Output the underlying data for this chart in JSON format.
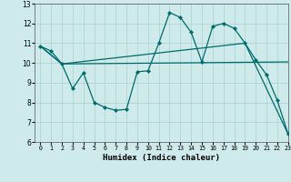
{
  "background_color": "#ceeaea",
  "grid_color": "#aacfcf",
  "line_color": "#006b6b",
  "xlabel": "Humidex (Indice chaleur)",
  "xlim": [
    -0.5,
    23
  ],
  "ylim": [
    6,
    13
  ],
  "xticks": [
    0,
    1,
    2,
    3,
    4,
    5,
    6,
    7,
    8,
    9,
    10,
    11,
    12,
    13,
    14,
    15,
    16,
    17,
    18,
    19,
    20,
    21,
    22,
    23
  ],
  "yticks": [
    6,
    7,
    8,
    9,
    10,
    11,
    12,
    13
  ],
  "line1_x": [
    0,
    1,
    2,
    3,
    4,
    5,
    6,
    7,
    8,
    9,
    10,
    11,
    12,
    13,
    14,
    15,
    16,
    17,
    18,
    19,
    20,
    21,
    22,
    23
  ],
  "line1_y": [
    10.85,
    10.6,
    9.95,
    8.7,
    9.5,
    8.0,
    7.75,
    7.6,
    7.65,
    9.55,
    9.6,
    11.0,
    12.55,
    12.3,
    11.55,
    10.05,
    11.85,
    12.0,
    11.75,
    11.0,
    10.15,
    9.4,
    8.1,
    6.4
  ],
  "line2_x": [
    0,
    2,
    23
  ],
  "line2_y": [
    10.85,
    9.95,
    10.05
  ],
  "line3_x": [
    0,
    2,
    19,
    23
  ],
  "line3_y": [
    10.85,
    9.95,
    11.0,
    6.4
  ]
}
